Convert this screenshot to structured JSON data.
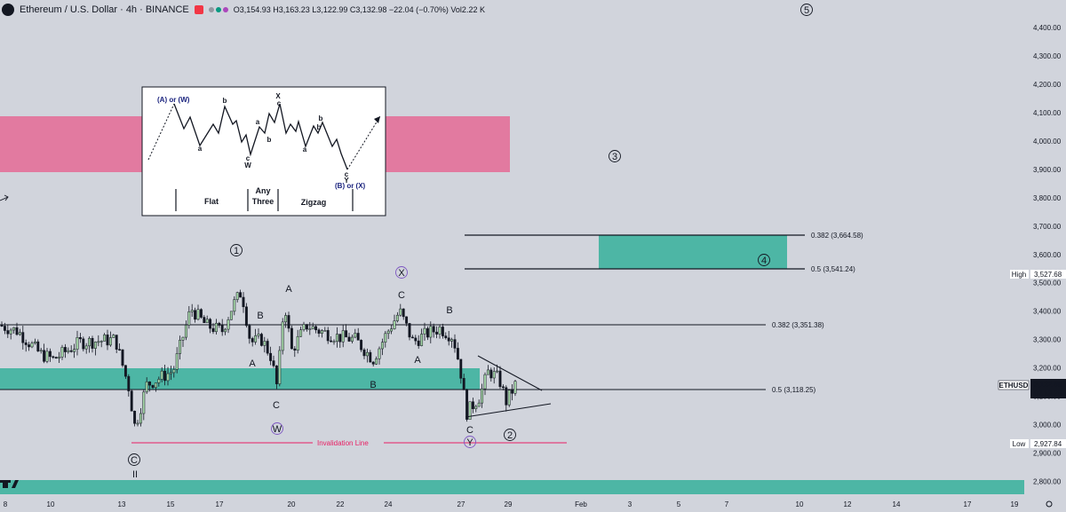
{
  "header": {
    "title": "Ethereum / U.S. Dollar · 4h · BINANCE",
    "ohlc": "O3,154.93 H3,163.23 L3,122.99 C3,132.98 −22.04 (−0.70%) Vol2.22 K"
  },
  "chart_data": {
    "type": "candlestick",
    "y_ticks": [
      "4,400.00",
      "4,300.00",
      "4,200.00",
      "4,100.00",
      "4,000.00",
      "3,900.00",
      "3,800.00",
      "3,700.00",
      "3,600.00",
      "3,500.00",
      "3,400.00",
      "3,300.00",
      "3,200.00",
      "3,100.00",
      "3,000.00",
      "2,900.00",
      "2,800.00"
    ],
    "x_ticks": [
      "8",
      "10",
      "13",
      "15",
      "17",
      "20",
      "22",
      "24",
      "27",
      "29",
      "Feb",
      "3",
      "5",
      "7",
      "10",
      "12",
      "14",
      "17",
      "19"
    ],
    "fib_levels": [
      {
        "label": "0.382 (3,664.58)",
        "price": 3664.58
      },
      {
        "label": "0.5 (3,541.24)",
        "price": 3541.24
      },
      {
        "label": "0.382 (3,351.38)",
        "price": 3351.38
      },
      {
        "label": "0.5 (3,118.25)",
        "price": 3118.25
      }
    ],
    "price_labels": {
      "high_tag": "High",
      "high": "3,527.68",
      "symbol": "ETHUSD",
      "last": "3,132.98",
      "countdown": "02:13:25",
      "low_tag": "Low",
      "low": "2,927.84"
    },
    "invalidation_label": "Invalidation Line",
    "wave_labels": {
      "w1": "1",
      "w2": "2",
      "w3": "3",
      "w4": "4",
      "w5": "5",
      "wC": "C",
      "wII": "II",
      "wX": "X",
      "wW": "W",
      "wY": "Y",
      "A": "A",
      "B": "B",
      "C": "C"
    },
    "inset": {
      "top_left": "(A) or (W)",
      "bottom_right": "(B) or (X)",
      "flat": "Flat",
      "any_three_1": "Any",
      "any_three_2": "Three",
      "zigzag": "Zigzag",
      "a": "a",
      "b": "b",
      "c": "c",
      "X": "X",
      "W": "W",
      "Y": "Y"
    },
    "colors": {
      "bull": "#8bc34a",
      "bear": "#131722",
      "zone_green": "#26a69a",
      "zone_pink": "#e27aa0",
      "invalidation": "#e91e63",
      "wave_purple": "#7e57c2"
    }
  }
}
